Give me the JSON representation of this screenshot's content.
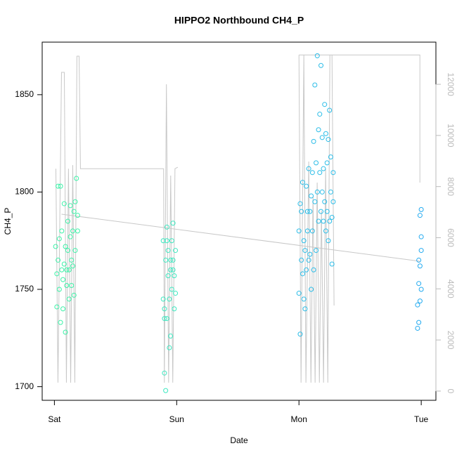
{
  "chart_data": {
    "type": "scatter",
    "title": "HIPPO2 Northbound CH4_P",
    "x_label": "Date",
    "y_label": "CH4_P",
    "xlim": [
      -0.1,
      3.12
    ],
    "xticks": [
      {
        "value": 0,
        "label": "Sat"
      },
      {
        "value": 1,
        "label": "Sun"
      },
      {
        "value": 2,
        "label": "Mon"
      },
      {
        "value": 3,
        "label": "Tue"
      }
    ],
    "ylim": [
      1693,
      1877
    ],
    "yticks": [
      1700,
      1750,
      1800,
      1850
    ],
    "y2lim": [
      -360,
      13650
    ],
    "y2ticks": [
      0,
      2000,
      4000,
      6000,
      8000,
      10000,
      12000
    ],
    "series": [
      {
        "type": "scatter",
        "color": "#3cf2a8",
        "x": [
          0.01,
          0.02,
          0.02,
          0.03,
          0.03,
          0.04,
          0.04,
          0.05,
          0.05,
          0.06,
          0.06,
          0.07,
          0.07,
          0.08,
          0.08,
          0.09,
          0.09,
          0.1,
          0.1,
          0.11,
          0.11,
          0.12,
          0.12,
          0.13,
          0.13,
          0.14,
          0.14,
          0.15,
          0.15,
          0.16,
          0.16,
          0.17,
          0.17,
          0.18,
          0.19,
          0.19
        ],
        "values": [
          1772,
          1758,
          1741,
          1803,
          1765,
          1776,
          1750,
          1803,
          1733,
          1780,
          1760,
          1755,
          1740,
          1794,
          1763,
          1772,
          1728,
          1752,
          1760,
          1785,
          1770,
          1760,
          1745,
          1793,
          1777,
          1765,
          1752,
          1780,
          1762,
          1790,
          1747,
          1795,
          1770,
          1807,
          1780,
          1788
        ]
      },
      {
        "type": "scatter",
        "color": "#3ce8c0",
        "x": [
          0.89,
          0.89,
          0.9,
          0.9,
          0.91,
          0.91,
          0.92,
          0.92,
          0.93,
          0.93,
          0.94,
          0.94,
          0.95,
          0.95,
          0.96,
          0.96,
          0.97,
          0.97,
          0.98,
          0.98,
          0.99,
          0.99,
          0.9,
          0.92,
          0.95,
          0.97
        ],
        "values": [
          1745,
          1775,
          1707,
          1740,
          1765,
          1698,
          1782,
          1735,
          1757,
          1770,
          1745,
          1720,
          1760,
          1726,
          1775,
          1750,
          1784,
          1765,
          1757,
          1740,
          1770,
          1748,
          1735,
          1775,
          1765,
          1760
        ]
      },
      {
        "type": "scatter",
        "color": "#2cbde8",
        "x": [
          2.0,
          2.0,
          2.01,
          2.01,
          2.02,
          2.02,
          2.03,
          2.03,
          2.04,
          2.04,
          2.05,
          2.05,
          2.06,
          2.06,
          2.07,
          2.07,
          2.08,
          2.08,
          2.09,
          2.09,
          2.1,
          2.1,
          2.11,
          2.11,
          2.12,
          2.12,
          2.13,
          2.13,
          2.14,
          2.14,
          2.15,
          2.15,
          2.16,
          2.16,
          2.17,
          2.17,
          2.18,
          2.18,
          2.19,
          2.19,
          2.2,
          2.2,
          2.21,
          2.21,
          2.22,
          2.22,
          2.23,
          2.23,
          2.24,
          2.24,
          2.25,
          2.25,
          2.26,
          2.26,
          2.27,
          2.27,
          2.28,
          2.28
        ],
        "values": [
          1780,
          1748,
          1794,
          1727,
          1765,
          1790,
          1758,
          1805,
          1745,
          1775,
          1770,
          1740,
          1803,
          1760,
          1790,
          1780,
          1765,
          1812,
          1790,
          1768,
          1798,
          1750,
          1810,
          1780,
          1826,
          1760,
          1855,
          1795,
          1815,
          1770,
          1870,
          1800,
          1832,
          1785,
          1840,
          1810,
          1865,
          1790,
          1828,
          1800,
          1812,
          1785,
          1845,
          1795,
          1830,
          1780,
          1815,
          1790,
          1827,
          1775,
          1842,
          1785,
          1818,
          1800,
          1787,
          1763,
          1810,
          1795
        ]
      },
      {
        "type": "scatter",
        "color": "#22aaf0",
        "x": [
          2.97,
          2.97,
          2.98,
          2.98,
          2.98,
          2.99,
          2.99,
          2.99,
          3.0,
          3.0,
          3.0,
          3.0
        ],
        "values": [
          1730,
          1742,
          1733,
          1753,
          1765,
          1788,
          1744,
          1762,
          1791,
          1770,
          1750,
          1777
        ]
      },
      {
        "type": "line",
        "axis": "y2",
        "color": "#c8c8c8",
        "x": [
          0.012,
          0.029,
          0.058,
          0.081,
          0.098,
          0.115,
          0.133,
          0.15,
          0.167,
          0.184,
          0.202,
          0.213,
          0.893,
          0.899,
          0.916,
          0.934,
          0.951,
          0.968,
          0.986,
          1.009,
          null,
          2.0,
          2.017,
          2.04,
          2.057,
          2.08,
          2.098,
          2.115,
          2.132,
          2.149,
          2.167,
          2.184,
          2.201,
          2.218,
          2.236,
          2.253,
          2.27,
          2.287,
          null,
          2.0,
          2.989,
          2.989,
          null,
          0.058,
          2.989
        ],
        "values": [
          8700,
          330,
          12470,
          12470,
          330,
          8700,
          330,
          8840,
          330,
          13100,
          13100,
          8700,
          8700,
          330,
          12000,
          330,
          8430,
          330,
          8700,
          8760,
          null,
          13150,
          330,
          13150,
          330,
          8980,
          330,
          7606,
          330,
          8156,
          330,
          7057,
          330,
          8700,
          330,
          13150,
          13150,
          3350,
          null,
          13150,
          13150,
          8156,
          null,
          6920,
          5080
        ]
      }
    ]
  }
}
